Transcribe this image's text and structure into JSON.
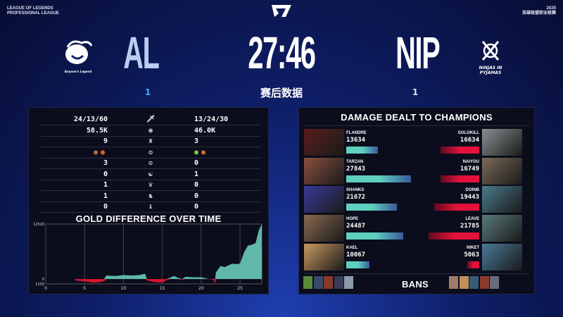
{
  "header": {
    "league_line1": "LEAGUE OF LEGENDS",
    "league_line2": "PROFESSIONAL LEAGUE",
    "year": "2025",
    "league_cn": "英雄联盟职业联赛",
    "timer": "27:46",
    "subtitle": "赛后数据"
  },
  "teams": {
    "left": {
      "abbr": "AL",
      "wins": "1",
      "logo_text": "Anyone's Legend"
    },
    "right": {
      "abbr": "NIP",
      "wins": "1",
      "logo_text": "NINJAS IN PYJAMAS"
    }
  },
  "stats": [
    {
      "icon": "sword-icon",
      "glyph": "🗡",
      "left": "24/13/60",
      "right": "13/24/30"
    },
    {
      "icon": "gold-icon",
      "glyph": "◉",
      "left": "58.5K",
      "right": "46.0K"
    },
    {
      "icon": "tower-icon",
      "glyph": "♜",
      "left": "9",
      "right": "3"
    },
    {
      "icon": "dragon-icon",
      "glyph": "❂",
      "left": "dragons",
      "right": "dragons",
      "left_drakes": [
        "#b36a3a",
        "#e0652a"
      ],
      "right_drakes": [
        "#7bbf4a",
        "#e0652a"
      ]
    },
    {
      "icon": "voidgrub-icon",
      "glyph": "✪",
      "left": "3",
      "right": "0"
    },
    {
      "icon": "herald-icon",
      "glyph": "☯",
      "left": "0",
      "right": "1"
    },
    {
      "icon": "atakhan-icon",
      "glyph": "♛",
      "left": "1",
      "right": "0"
    },
    {
      "icon": "baron-icon",
      "glyph": "♞",
      "left": "1",
      "right": "0"
    },
    {
      "icon": "elder-icon",
      "glyph": "♝",
      "left": "0",
      "right": "0"
    }
  ],
  "chart_data": {
    "type": "area",
    "title": "GOLD DIFFERENCE OVER TIME",
    "xlabel": "",
    "ylabel": "",
    "xlim": [
      0,
      27.8
    ],
    "ylim": [
      -1103,
      12520
    ],
    "x_ticks": [
      0,
      5,
      10,
      15,
      20,
      25
    ],
    "y_ticks": [
      "12520",
      "0",
      "1103"
    ],
    "grid": "vertical",
    "positive_color": "#5fb8a8",
    "negative_color": "#d4162f",
    "x": [
      0,
      3.7,
      4,
      5,
      6,
      7,
      7.5,
      7.8,
      9,
      10,
      11,
      12,
      12.8,
      13,
      14,
      15,
      15.5,
      16,
      16.5,
      17,
      17.5,
      18,
      19,
      20,
      21,
      21.6,
      21.8,
      21.9,
      22.5,
      23,
      24,
      24.5,
      25,
      25.5,
      26,
      26.5,
      27,
      27.4,
      27.8
    ],
    "y": [
      0,
      0,
      -400,
      -500,
      -800,
      -700,
      -500,
      800,
      700,
      900,
      800,
      900,
      1200,
      -300,
      -700,
      -800,
      -300,
      300,
      700,
      300,
      -200,
      500,
      400,
      400,
      0,
      -200,
      -1103,
      1500,
      3000,
      2700,
      3500,
      3400,
      3500,
      6000,
      7600,
      7800,
      8200,
      11000,
      12520
    ]
  },
  "damage": {
    "title": "DAMAGE DEALT TO CHAMPIONS",
    "max": 27843,
    "left_color": "#5fd0c0",
    "right_color": "#e3123a",
    "left": [
      {
        "player": "FLANDRE",
        "value": 13634,
        "portrait": "#5a1d1d"
      },
      {
        "player": "TARZAN",
        "value": 27843,
        "portrait": "#8a5040"
      },
      {
        "player": "SHANKS",
        "value": 21672,
        "portrait": "#3a3a9a"
      },
      {
        "player": "HOPE",
        "value": 24487,
        "portrait": "#8a6a50"
      },
      {
        "player": "KAEL",
        "value": 10067,
        "portrait": "#c89a60"
      }
    ],
    "right": [
      {
        "player": "SOLOKILL",
        "value": 16634,
        "portrait": "#8a9090"
      },
      {
        "player": "NAIYOU",
        "value": 16749,
        "portrait": "#7a6a5a"
      },
      {
        "player": "DOINB",
        "value": 19443,
        "portrait": "#4a7a8a"
      },
      {
        "player": "LEAVE",
        "value": 21785,
        "portrait": "#5a7a7a"
      },
      {
        "player": "NIKET",
        "value": 5063,
        "portrait": "#4a7a9a"
      }
    ]
  },
  "bans": {
    "label": "BANS",
    "left": [
      "#5a8a3a",
      "#3a4a6a",
      "#8a3a2a",
      "#3a3a5a",
      "#8a9aaa"
    ],
    "right": [
      "#a07a6a",
      "#c0905a",
      "#3a5a7a",
      "#8a3a2a",
      "#6a6a7a"
    ]
  }
}
